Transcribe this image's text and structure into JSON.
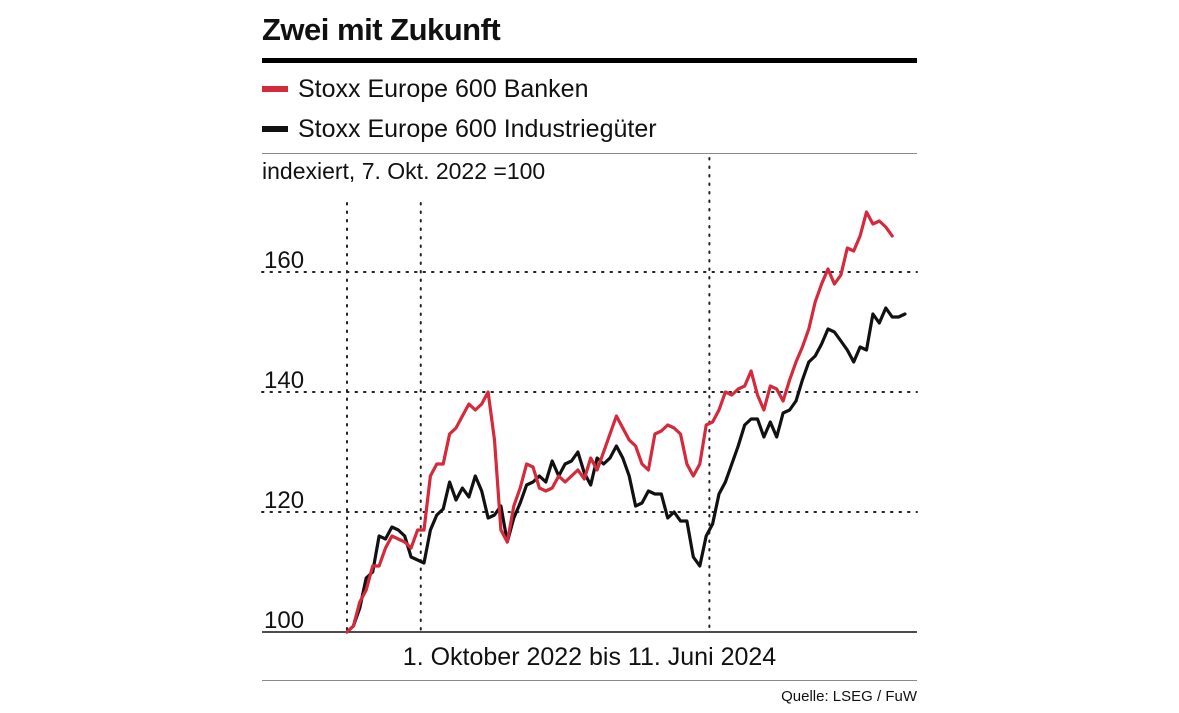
{
  "title": "Zwei mit Zukunft",
  "subtitle": "indexiert, 7. Okt. 2022 =100",
  "x_caption": "1. Oktober 2022 bis 11. Juni 2024",
  "source": "Quelle: LSEG / FuW",
  "colors": {
    "banken": "#d42a3c",
    "industrie": "#111111"
  },
  "chart_data": {
    "type": "line",
    "title": "Zwei mit Zukunft",
    "ylabel": "indexiert, 7. Okt. 2022 =100",
    "xlabel": "1. Oktober 2022 bis 11. Juni 2024",
    "ylim": [
      100,
      170
    ],
    "yticks": [
      100,
      120,
      140,
      160
    ],
    "x_range": [
      0,
      87
    ],
    "x_vertical_markers": [
      0,
      11.5,
      56.5
    ],
    "legend": [
      "Stoxx Europe 600 Banken",
      "Stoxx Europe 600 Industriegüter"
    ],
    "series": [
      {
        "name": "Stoxx Europe 600 Banken",
        "color": "#d42a3c",
        "values": [
          100,
          101,
          105,
          107,
          111,
          111,
          114,
          116,
          115.5,
          115,
          114,
          117,
          117,
          126,
          128,
          128,
          133,
          134,
          136,
          138,
          137,
          138,
          140,
          132,
          117,
          115,
          121,
          124,
          128,
          127.5,
          124,
          123.5,
          124,
          126,
          125,
          126,
          127,
          125.5,
          129,
          127,
          130,
          133,
          136,
          134,
          132,
          131,
          128,
          127,
          133,
          133.5,
          134.5,
          134,
          133,
          128,
          126,
          128,
          134.5,
          135,
          137,
          140,
          139.5,
          140.5,
          141,
          143.5,
          139.5,
          137,
          141,
          140.5,
          138.5,
          142,
          145,
          147.5,
          150.5,
          155,
          158,
          160.5,
          158,
          159.5,
          164,
          163.5,
          166,
          170,
          168,
          168.5,
          167.5,
          166
        ]
      },
      {
        "name": "Stoxx Europe 600 Industriegüter",
        "color": "#111111",
        "values": [
          100,
          101,
          104,
          109,
          110,
          116,
          115.5,
          117.5,
          117,
          116,
          112.5,
          112,
          111.5,
          117,
          119.5,
          120.5,
          125,
          122,
          124,
          122.5,
          126,
          123.5,
          119,
          119.5,
          121,
          115,
          119,
          121.5,
          124.5,
          125,
          126,
          125,
          128.5,
          126,
          128,
          128.5,
          130,
          126.5,
          124.5,
          129,
          128,
          129,
          131,
          129,
          126,
          121,
          121.5,
          123.5,
          123,
          123,
          119,
          120,
          118.5,
          118.5,
          112.5,
          111,
          116,
          118,
          123,
          125,
          128,
          131,
          134.5,
          135.5,
          135.5,
          132.5,
          135,
          132.5,
          136.5,
          137,
          138.5,
          142,
          145,
          146,
          148,
          150.5,
          150,
          148.5,
          147,
          145,
          147.5,
          147,
          153,
          151.5,
          154,
          152.5,
          152.5,
          153
        ]
      }
    ]
  }
}
